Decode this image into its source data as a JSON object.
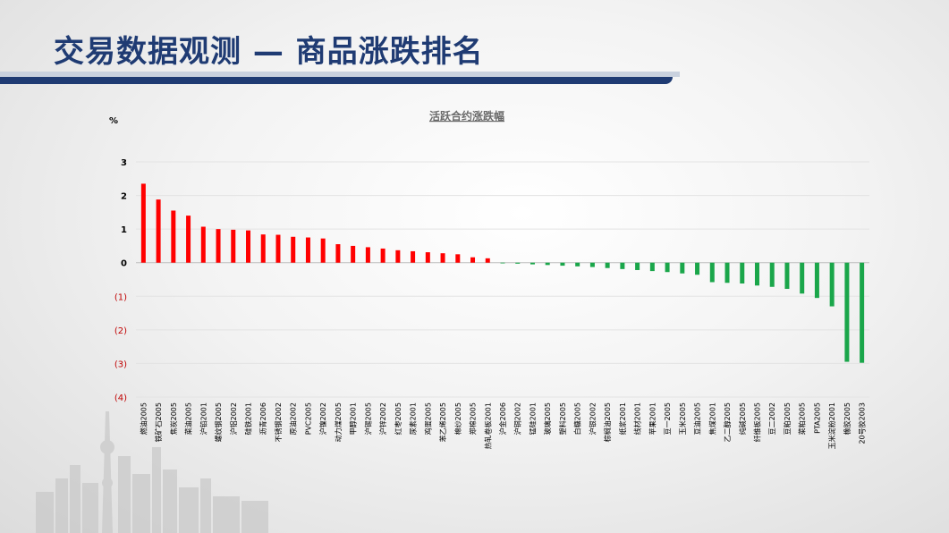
{
  "slide": {
    "title": "交易数据观测 — 商品涨跌排名"
  },
  "colors": {
    "title": "#1f3b73",
    "positive": "#ff0000",
    "negative": "#1aa64a",
    "neg_tick": "#c00000"
  },
  "chart_data": {
    "type": "bar",
    "title": "活跃合约涨跌幅",
    "unit_label": "%",
    "ylim": [
      -4,
      3
    ],
    "yticks": [
      {
        "value": 3,
        "label": "3"
      },
      {
        "value": 2,
        "label": "2"
      },
      {
        "value": 1,
        "label": "1"
      },
      {
        "value": 0,
        "label": "0"
      },
      {
        "value": -1,
        "label": "(1)"
      },
      {
        "value": -2,
        "label": "(2)"
      },
      {
        "value": -3,
        "label": "(3)"
      },
      {
        "value": -4,
        "label": "(4)"
      }
    ],
    "grid": true,
    "categories": [
      "燃油2005",
      "铁矿石2005",
      "焦炭2005",
      "菜油2005",
      "沪铅2001",
      "螺纹钢2005",
      "沪铝2002",
      "硅铁2001",
      "沥青2006",
      "不锈钢2002",
      "原油2002",
      "PVC2005",
      "沪镍2002",
      "动力煤2005",
      "甲醇2001",
      "沪锡2005",
      "沪锌2002",
      "红枣2005",
      "尿素2001",
      "鸡蛋2005",
      "苯乙烯2005",
      "棉纱2005",
      "郑棉2005",
      "热轧卷板2001",
      "沪金2006",
      "沪铜2002",
      "锰硅2001",
      "玻璃2005",
      "塑料2005",
      "白糖2005",
      "沪银2002",
      "棕榈油2005",
      "纸浆2001",
      "线材2001",
      "苹果2001",
      "豆一2005",
      "玉米2005",
      "豆油2005",
      "焦煤2001",
      "乙二醇2005",
      "纯碱2005",
      "纤维板2005",
      "豆二2002",
      "豆粕2005",
      "菜粕2005",
      "PTA2005",
      "玉米淀粉2001",
      "橡胶2005",
      "20号胶2003"
    ],
    "values": [
      2.35,
      1.88,
      1.55,
      1.4,
      1.07,
      1.0,
      0.98,
      0.96,
      0.84,
      0.83,
      0.77,
      0.75,
      0.72,
      0.55,
      0.5,
      0.46,
      0.42,
      0.37,
      0.34,
      0.31,
      0.28,
      0.25,
      0.16,
      0.13,
      -0.02,
      -0.03,
      -0.05,
      -0.07,
      -0.09,
      -0.11,
      -0.13,
      -0.16,
      -0.19,
      -0.22,
      -0.25,
      -0.28,
      -0.32,
      -0.36,
      -0.58,
      -0.6,
      -0.62,
      -0.68,
      -0.72,
      -0.78,
      -0.92,
      -1.05,
      -1.3,
      -2.95,
      -2.98
    ]
  }
}
